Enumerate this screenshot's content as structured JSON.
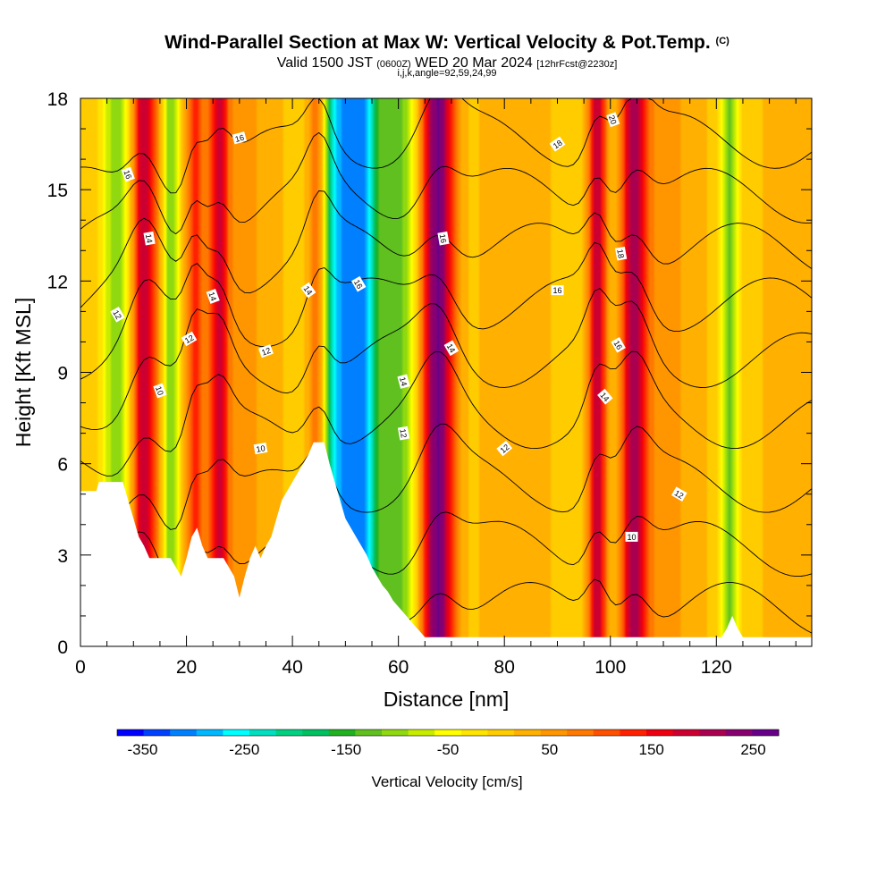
{
  "header": {
    "title": "Wind-Parallel Section at Max W: Vertical Velocity & Pot.Temp.",
    "title_mark": "(C)",
    "valid_prefix": "Valid 1500 JST",
    "valid_utc": "(0600Z)",
    "valid_date": "WED 20 Mar 2024",
    "valid_fcst": "[12hrFcst@2230z]",
    "indices": "i,j,k,angle=92,59,24,99"
  },
  "chart_data": {
    "type": "heatmap",
    "xlabel": "Distance [nm]",
    "ylabel": "Height [Kft MSL]",
    "xlim": [
      0,
      138
    ],
    "ylim": [
      0,
      18
    ],
    "xticks": [
      "0",
      "20",
      "40",
      "60",
      "80",
      "100",
      "120"
    ],
    "yticks": [
      "0",
      "3",
      "6",
      "9",
      "12",
      "15",
      "18"
    ],
    "colorbar": {
      "label": "Vertical Velocity [cm/s]",
      "ticks": [
        "-350",
        "-250",
        "-150",
        "-50",
        "50",
        "150",
        "250"
      ],
      "range": [
        -375,
        275
      ],
      "colors": [
        "#0000ff",
        "#0040ff",
        "#0080ff",
        "#00b8ff",
        "#00ffff",
        "#00e0c0",
        "#00d080",
        "#00c060",
        "#20b020",
        "#60c020",
        "#90d810",
        "#c8ec00",
        "#ffff00",
        "#ffe400",
        "#ffcc00",
        "#ffb000",
        "#ff9600",
        "#ff7800",
        "#ff5000",
        "#ff2000",
        "#ee0010",
        "#cc0030",
        "#aa0050",
        "#880070",
        "#660088"
      ]
    },
    "updraft_bands": [
      {
        "x": 12,
        "w": 2.5,
        "peak": 170
      },
      {
        "x": 21.5,
        "w": 1.5,
        "peak": 120
      },
      {
        "x": 26,
        "w": 2,
        "peak": 150
      },
      {
        "x": 45,
        "w": 2,
        "peak": 160
      },
      {
        "x": 67.5,
        "w": 3,
        "peak": 240
      },
      {
        "x": 97.5,
        "w": 1.8,
        "peak": 200
      },
      {
        "x": 104.5,
        "w": 2.5,
        "peak": 190
      }
    ],
    "downdraft_bands": [
      {
        "x": 7,
        "w": 3,
        "peak": -150
      },
      {
        "x": 17,
        "w": 1.5,
        "peak": -120
      },
      {
        "x": 48,
        "w": 3,
        "peak": -230
      },
      {
        "x": 53,
        "w": 3.5,
        "peak": -320
      },
      {
        "x": 60,
        "w": 3.5,
        "peak": -160
      },
      {
        "x": 122.5,
        "w": 1.5,
        "peak": -120
      }
    ],
    "terrain_kft": [
      [
        0,
        5.1
      ],
      [
        3,
        5.1
      ],
      [
        3.5,
        5.4
      ],
      [
        8,
        5.4
      ],
      [
        9,
        4.8
      ],
      [
        10,
        4.2
      ],
      [
        11,
        3.6
      ],
      [
        12,
        3.3
      ],
      [
        13,
        2.9
      ],
      [
        17,
        2.9
      ],
      [
        18,
        2.6
      ],
      [
        19,
        2.3
      ],
      [
        20,
        2.9
      ],
      [
        21,
        3.6
      ],
      [
        22,
        3.9
      ],
      [
        23,
        3.3
      ],
      [
        24,
        2.9
      ],
      [
        27,
        2.9
      ],
      [
        28,
        2.6
      ],
      [
        29,
        2.3
      ],
      [
        30,
        1.6
      ],
      [
        31,
        2.3
      ],
      [
        32,
        2.9
      ],
      [
        33,
        3.3
      ],
      [
        34,
        2.9
      ],
      [
        35,
        3.3
      ],
      [
        36,
        3.6
      ],
      [
        37,
        4.2
      ],
      [
        38,
        4.8
      ],
      [
        39,
        5.1
      ],
      [
        40,
        5.4
      ],
      [
        41,
        5.7
      ],
      [
        42,
        6.0
      ],
      [
        43,
        6.3
      ],
      [
        44,
        6.7
      ],
      [
        46,
        6.7
      ],
      [
        47,
        6.0
      ],
      [
        48,
        5.4
      ],
      [
        49,
        4.8
      ],
      [
        50,
        4.2
      ],
      [
        51,
        3.9
      ],
      [
        52,
        3.6
      ],
      [
        53,
        3.3
      ],
      [
        54,
        3.0
      ],
      [
        55,
        2.6
      ],
      [
        56,
        2.3
      ],
      [
        57,
        2.0
      ],
      [
        58,
        1.8
      ],
      [
        59,
        1.5
      ],
      [
        60,
        1.3
      ],
      [
        61,
        1.1
      ],
      [
        62,
        0.9
      ],
      [
        63,
        0.7
      ],
      [
        64,
        0.5
      ],
      [
        65,
        0.3
      ],
      [
        68,
        0.3
      ],
      [
        100,
        0.3
      ],
      [
        121,
        0.3
      ],
      [
        122,
        0.6
      ],
      [
        123,
        1.0
      ],
      [
        124,
        0.6
      ],
      [
        125,
        0.3
      ],
      [
        138,
        0.3
      ]
    ],
    "theta_labels": [
      {
        "x": 30,
        "y": 16.7,
        "text": "16",
        "rot": -15
      },
      {
        "x": 9,
        "y": 15.5,
        "text": "16",
        "rot": 70
      },
      {
        "x": 13,
        "y": 13.4,
        "text": "14",
        "rot": 80
      },
      {
        "x": 25,
        "y": 11.5,
        "text": "14",
        "rot": 70
      },
      {
        "x": 7,
        "y": 10.9,
        "text": "12",
        "rot": 60
      },
      {
        "x": 20.5,
        "y": 10.1,
        "text": "12",
        "rot": -30
      },
      {
        "x": 35,
        "y": 9.7,
        "text": "12",
        "rot": -20
      },
      {
        "x": 15,
        "y": 8.4,
        "text": "10",
        "rot": 70
      },
      {
        "x": 34,
        "y": 6.5,
        "text": "10",
        "rot": -10
      },
      {
        "x": 43,
        "y": 11.7,
        "text": "14",
        "rot": 55
      },
      {
        "x": 52.5,
        "y": 11.9,
        "text": "16",
        "rot": 60
      },
      {
        "x": 61,
        "y": 8.7,
        "text": "14",
        "rot": 75
      },
      {
        "x": 61,
        "y": 7.0,
        "text": "12",
        "rot": 80
      },
      {
        "x": 68.5,
        "y": 13.4,
        "text": "16",
        "rot": 80
      },
      {
        "x": 70,
        "y": 9.8,
        "text": "14",
        "rot": 60
      },
      {
        "x": 80,
        "y": 6.5,
        "text": "12",
        "rot": -40
      },
      {
        "x": 90,
        "y": 16.5,
        "text": "18",
        "rot": -35
      },
      {
        "x": 90,
        "y": 11.7,
        "text": "16",
        "rot": 0
      },
      {
        "x": 100.5,
        "y": 17.3,
        "text": "20",
        "rot": 70
      },
      {
        "x": 102,
        "y": 12.9,
        "text": "18",
        "rot": 80
      },
      {
        "x": 101.5,
        "y": 9.9,
        "text": "16",
        "rot": 60
      },
      {
        "x": 99,
        "y": 8.2,
        "text": "14",
        "rot": 50
      },
      {
        "x": 113,
        "y": 5.0,
        "text": "12",
        "rot": 30
      },
      {
        "x": 104,
        "y": 3.6,
        "text": "10",
        "rot": 0
      }
    ]
  }
}
